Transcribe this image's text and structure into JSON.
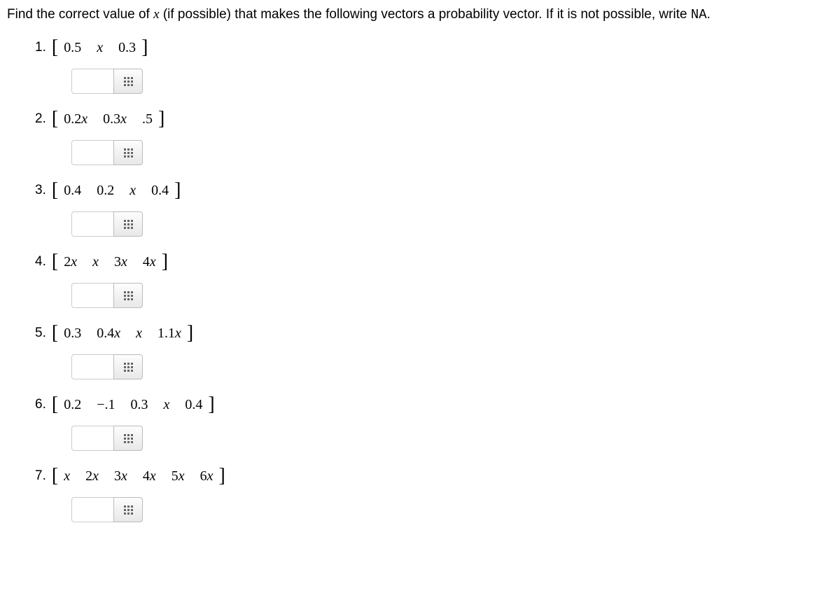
{
  "instruction": {
    "prefix": "Find the correct value of ",
    "variable": "x",
    "middle": " (if possible) that makes the following vectors a probability vector. If it is not possible, write ",
    "na": "NA",
    "suffix": "."
  },
  "problems": [
    {
      "num": "1.",
      "entries": [
        {
          "text": "0.5",
          "italic": false
        },
        {
          "text": "x",
          "italic": true
        },
        {
          "text": "0.3",
          "italic": false
        }
      ]
    },
    {
      "num": "2.",
      "entries": [
        {
          "text": "0.2x",
          "italic": true,
          "prefix": "0.2",
          "var": "x"
        },
        {
          "text": "0.3x",
          "italic": true,
          "prefix": "0.3",
          "var": "x"
        },
        {
          "text": ".5",
          "italic": false
        }
      ]
    },
    {
      "num": "3.",
      "entries": [
        {
          "text": "0.4",
          "italic": false
        },
        {
          "text": "0.2",
          "italic": false
        },
        {
          "text": "x",
          "italic": true
        },
        {
          "text": "0.4",
          "italic": false
        }
      ]
    },
    {
      "num": "4.",
      "entries": [
        {
          "text": "2x",
          "prefix": "2",
          "var": "x"
        },
        {
          "text": "x",
          "italic": true
        },
        {
          "text": "3x",
          "prefix": "3",
          "var": "x"
        },
        {
          "text": "4x",
          "prefix": "4",
          "var": "x"
        }
      ]
    },
    {
      "num": "5.",
      "entries": [
        {
          "text": "0.3",
          "italic": false
        },
        {
          "text": "0.4x",
          "prefix": "0.4",
          "var": "x"
        },
        {
          "text": "x",
          "italic": true
        },
        {
          "text": "1.1x",
          "prefix": "1.1",
          "var": "x"
        }
      ]
    },
    {
      "num": "6.",
      "entries": [
        {
          "text": "0.2",
          "italic": false
        },
        {
          "text": "−.1",
          "italic": false
        },
        {
          "text": "0.3",
          "italic": false
        },
        {
          "text": "x",
          "italic": true
        },
        {
          "text": "0.4",
          "italic": false
        }
      ]
    },
    {
      "num": "7.",
      "entries": [
        {
          "text": "x",
          "italic": true
        },
        {
          "text": "2x",
          "prefix": "2",
          "var": "x"
        },
        {
          "text": "3x",
          "prefix": "3",
          "var": "x"
        },
        {
          "text": "4x",
          "prefix": "4",
          "var": "x"
        },
        {
          "text": "5x",
          "prefix": "5",
          "var": "x"
        },
        {
          "text": "6x",
          "prefix": "6",
          "var": "x"
        }
      ]
    }
  ]
}
